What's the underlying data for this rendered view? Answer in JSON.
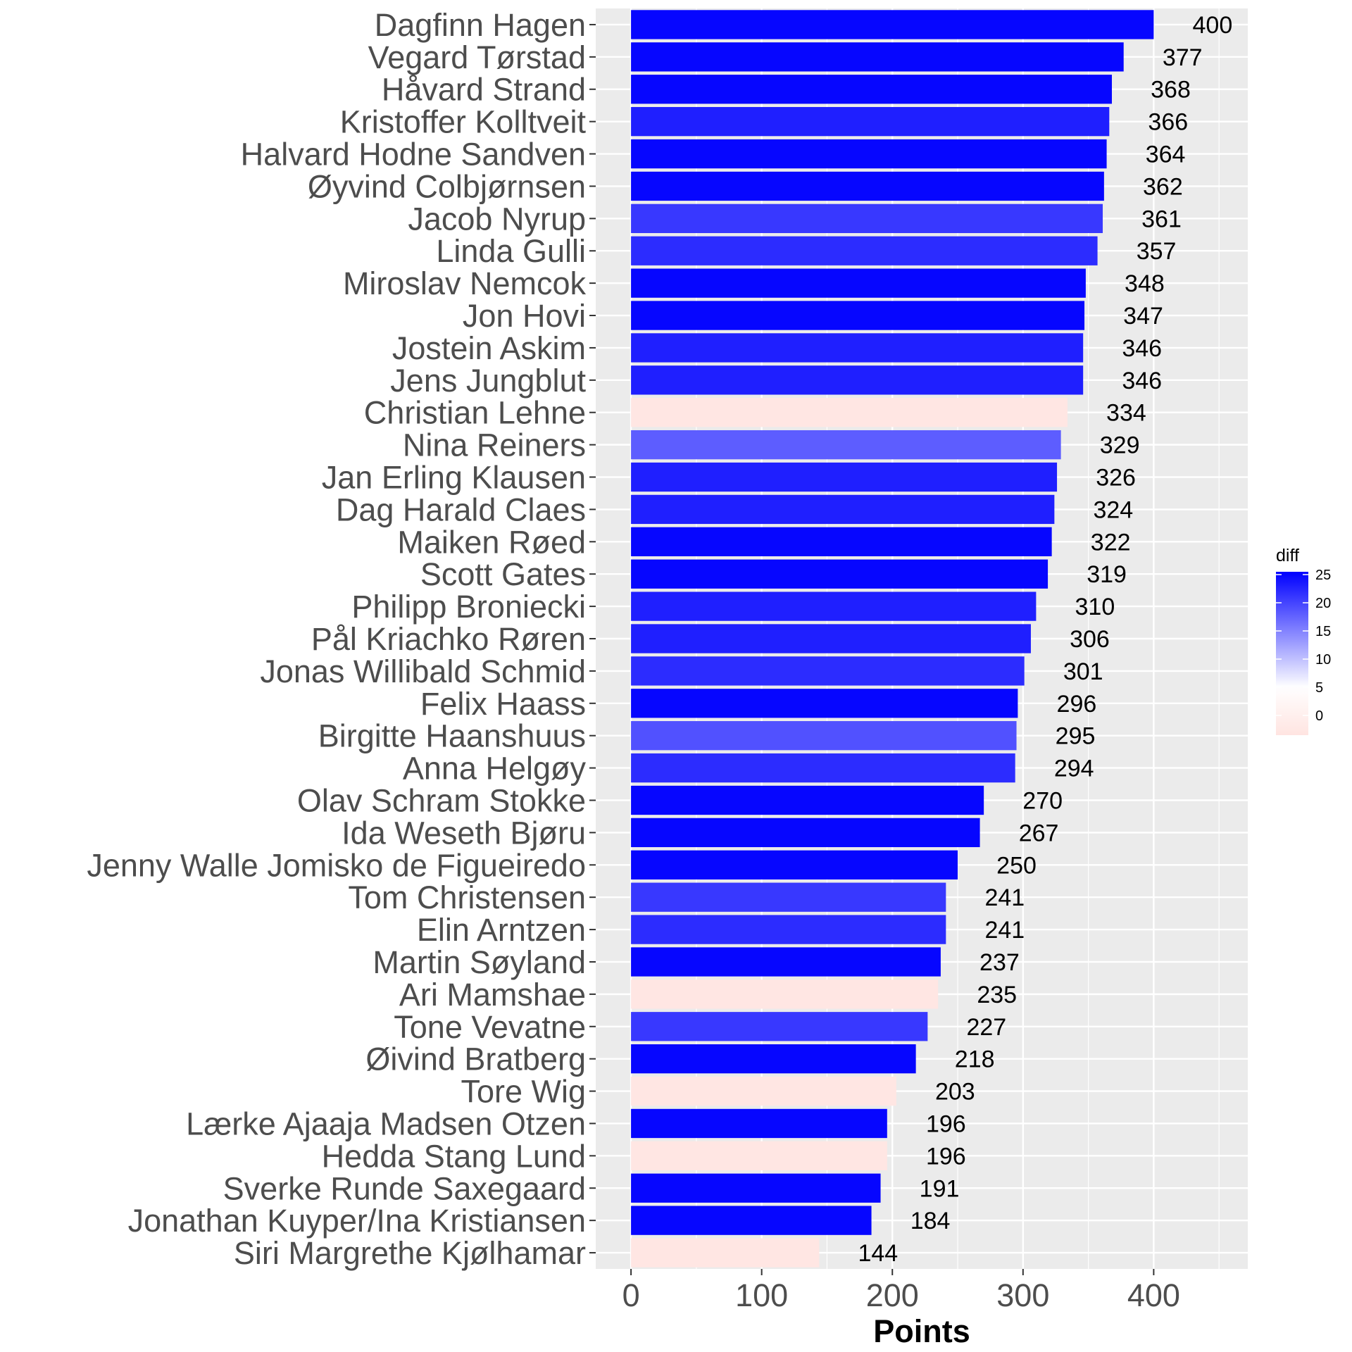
{
  "chart_data": {
    "type": "bar",
    "orientation": "horizontal",
    "xlabel": "Points",
    "ylabel": "",
    "xlim": [
      -27,
      472
    ],
    "xticks": [
      0,
      100,
      200,
      300,
      400
    ],
    "grid": true,
    "legend": {
      "title": "diff",
      "position": "right",
      "ticks": [
        0,
        5,
        10,
        15,
        20,
        25
      ],
      "range": [
        -3.5,
        25.5
      ],
      "low_color": "#FFE4E1",
      "mid_color": "#FFFFFF",
      "high_color": "#0000FF",
      "mid_value": 5
    },
    "categories": [
      "Dagfinn Hagen",
      "Vegard Tørstad",
      "Håvard Strand",
      "Kristoffer Kolltveit",
      "Halvard Hodne Sandven",
      "Øyvind Colbjørnsen",
      "Jacob Nyrup",
      "Linda Gulli",
      "Miroslav Nemcok",
      "Jon Hovi",
      "Jostein Askim",
      "Jens Jungblut",
      "Christian Lehne",
      "Nina Reiners",
      "Jan Erling Klausen",
      "Dag Harald Claes",
      "Maiken Røed",
      "Scott Gates",
      "Philipp Broniecki",
      "Pål Kriachko Røren",
      "Jonas Willibald Schmid",
      "Felix Haass",
      "Birgitte Haanshuus",
      "Anna Helgøy",
      "Olav Schram Stokke",
      "Ida Weseth Bjøru",
      "Jenny Walle Jomisko de Figueiredo",
      "Tom Christensen",
      "Elin Arntzen",
      "Martin Søyland",
      "Ari Mamshae",
      "Tone Vevatne",
      "Øivind Bratberg",
      "Tore Wig",
      "Lærke Ajaaja Madsen Otzen",
      "Hedda Stang Lund",
      "Sverke Runde Saxegaard",
      "Jonathan Kuyper/Ina Kristiansen",
      "Siri Margrethe Kjølhamar"
    ],
    "values": [
      400,
      377,
      368,
      366,
      364,
      362,
      361,
      357,
      348,
      347,
      346,
      346,
      334,
      329,
      326,
      324,
      322,
      319,
      310,
      306,
      301,
      296,
      295,
      294,
      270,
      267,
      250,
      241,
      241,
      237,
      235,
      227,
      218,
      203,
      196,
      196,
      191,
      184,
      144
    ],
    "diff": [
      25,
      25,
      25,
      23,
      25,
      25,
      21,
      22,
      25,
      25,
      23,
      23,
      -3,
      18,
      23,
      23,
      25,
      25,
      23,
      23,
      22,
      25,
      19,
      22,
      25,
      25,
      25,
      21,
      22,
      25,
      -3,
      21,
      25,
      -3,
      25,
      -3,
      25,
      25,
      -3
    ],
    "data_labels": [
      "400",
      "377",
      "368",
      "366",
      "364",
      "362",
      "361",
      "357",
      "348",
      "347",
      "346",
      "346",
      "334",
      "329",
      "326",
      "324",
      "322",
      "319",
      "310",
      "306",
      "301",
      "296",
      "295",
      "294",
      "270",
      "267",
      "250",
      "241",
      "241",
      "237",
      "235",
      "227",
      "218",
      "203",
      "196",
      "196",
      "191",
      "184",
      "144"
    ]
  }
}
